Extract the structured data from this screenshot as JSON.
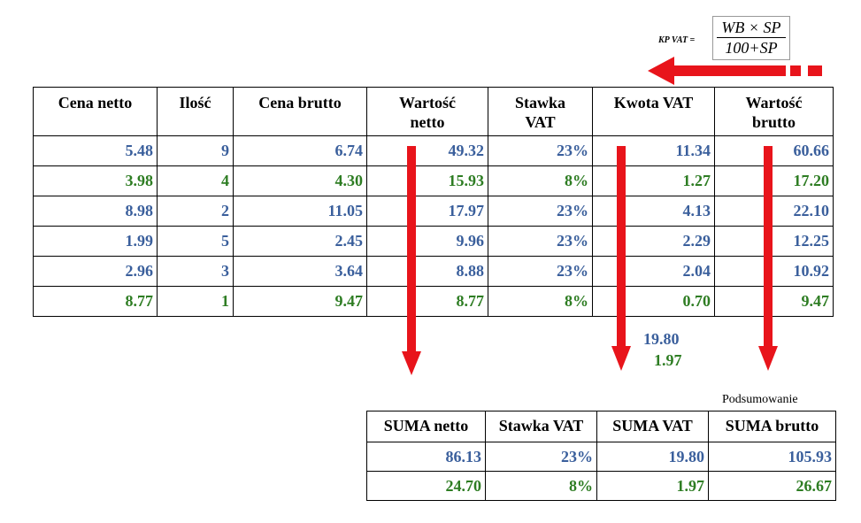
{
  "formula": {
    "label": "KP VAT =",
    "numerator": "WB × SP",
    "denominator": "100+SP"
  },
  "main_table": {
    "headers": [
      "Cena netto",
      "Ilość",
      "Cena brutto",
      "Wartość netto",
      "Stawka VAT",
      "Kwota VAT",
      "Wartość brutto"
    ],
    "rows": [
      {
        "color": "blue",
        "cells": [
          "5.48",
          "9",
          "6.74",
          "49.32",
          "23%",
          "11.34",
          "60.66"
        ]
      },
      {
        "color": "green",
        "cells": [
          "3.98",
          "4",
          "4.30",
          "15.93",
          "8%",
          "1.27",
          "17.20"
        ]
      },
      {
        "color": "blue",
        "cells": [
          "8.98",
          "2",
          "11.05",
          "17.97",
          "23%",
          "4.13",
          "22.10"
        ]
      },
      {
        "color": "blue",
        "cells": [
          "1.99",
          "5",
          "2.45",
          "9.96",
          "23%",
          "2.29",
          "12.25"
        ]
      },
      {
        "color": "blue",
        "cells": [
          "2.96",
          "3",
          "3.64",
          "8.88",
          "23%",
          "2.04",
          "10.92"
        ]
      },
      {
        "color": "green",
        "cells": [
          "8.77",
          "1",
          "9.47",
          "8.77",
          "8%",
          "0.70",
          "9.47"
        ]
      }
    ]
  },
  "vat_totals": {
    "blue": "19.80",
    "green": "1.97"
  },
  "summary": {
    "caption": "Podsumowanie",
    "headers": [
      "SUMA netto",
      "Stawka VAT",
      "SUMA VAT",
      "SUMA brutto"
    ],
    "rows": [
      {
        "color": "blue",
        "cells": [
          "86.13",
          "23%",
          "19.80",
          "105.93"
        ]
      },
      {
        "color": "green",
        "cells": [
          "24.70",
          "8%",
          "1.97",
          "26.67"
        ]
      }
    ]
  },
  "colors": {
    "blue": "#3a5f9c",
    "green": "#2e7d23",
    "arrow": "#e8141b"
  }
}
